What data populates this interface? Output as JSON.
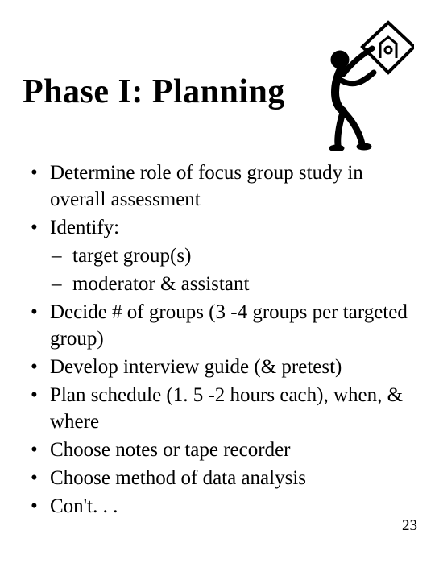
{
  "title": "Phase I: Planning",
  "bullets": [
    {
      "text": "Determine role of focus group study in overall assessment"
    },
    {
      "text": "Identify:",
      "sub": [
        "target group(s)",
        "moderator & assistant"
      ]
    },
    {
      "text": "Decide # of groups (3 -4 groups per targeted group)"
    },
    {
      "text": "Develop interview guide (& pretest)"
    },
    {
      "text": "Plan schedule (1. 5 -2 hours each), when, & where"
    },
    {
      "text": "Choose notes or tape recorder"
    },
    {
      "text": "Choose method of data analysis"
    },
    {
      "text": "Con't. . ."
    }
  ],
  "page_number": "23",
  "style": {
    "background_color": "#ffffff",
    "text_color": "#000000",
    "title_fontsize": 42,
    "body_fontsize": 25,
    "pagenum_fontsize": 19,
    "font_family": "Times New Roman"
  }
}
